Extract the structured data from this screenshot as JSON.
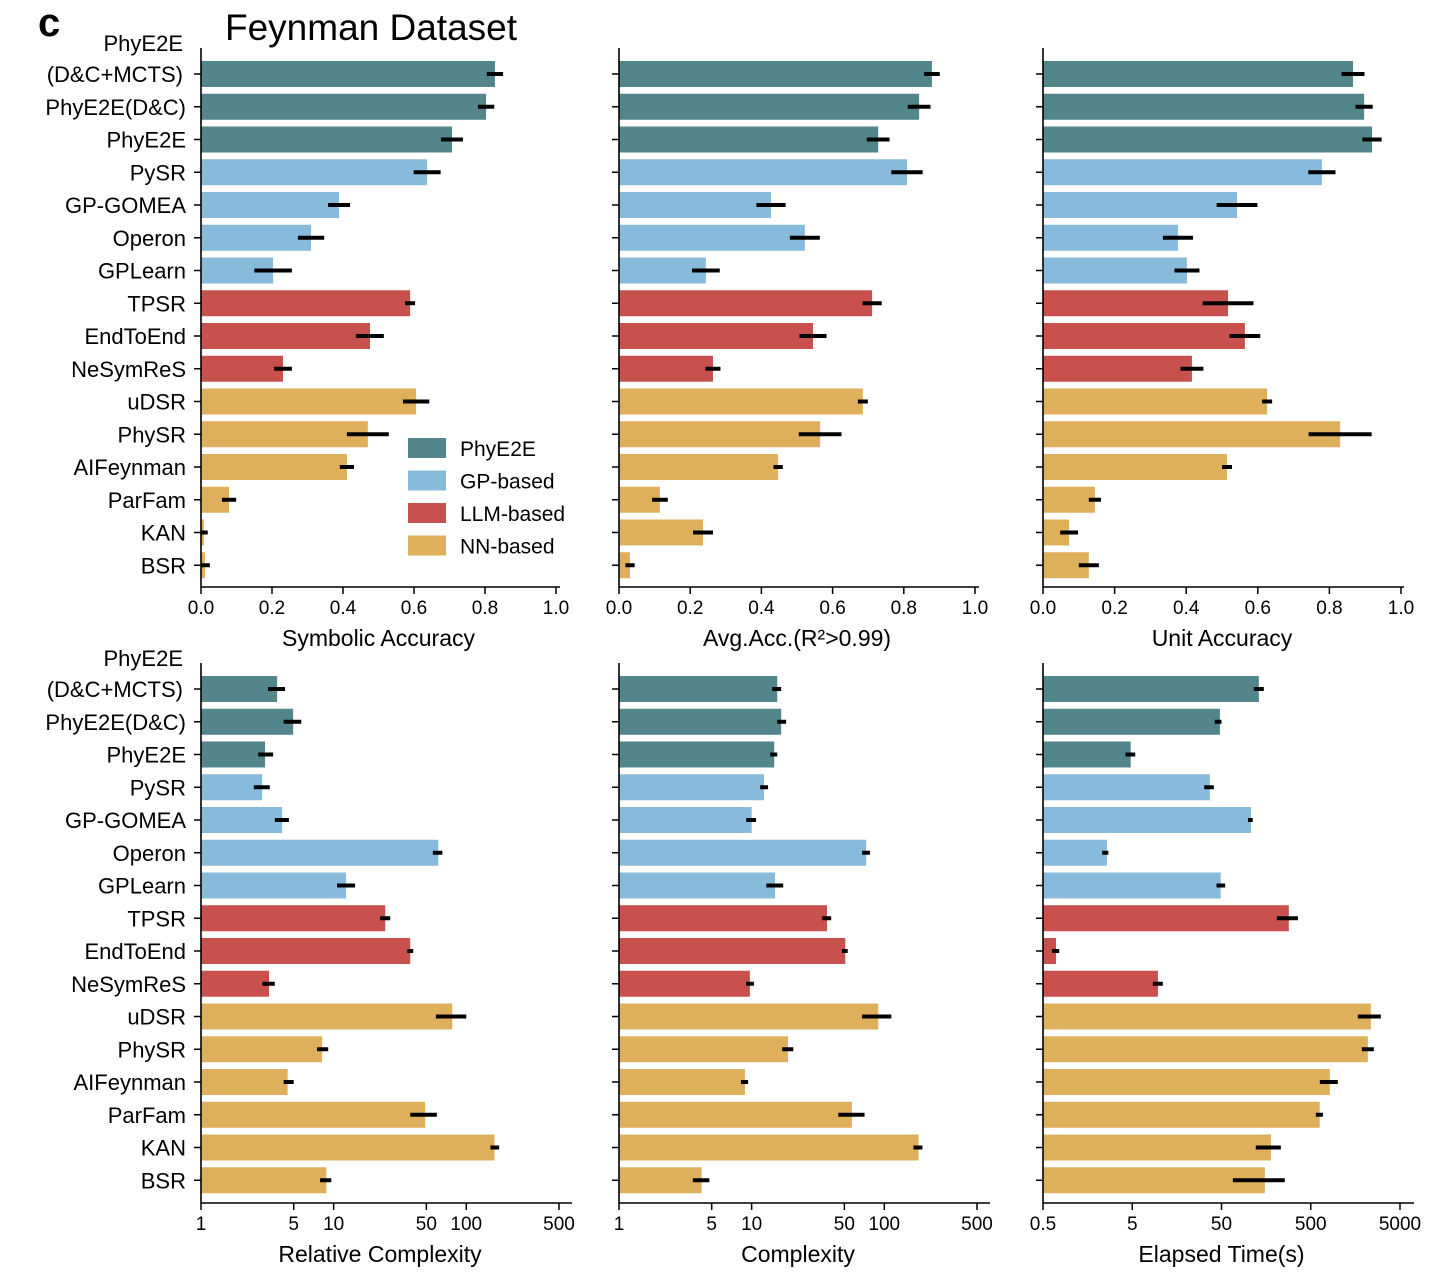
{
  "panel_letter": "c",
  "title": "Feynman Dataset",
  "colors": {
    "PhyE2E": "#52868a",
    "GP-based": "#88bbdb",
    "LLM-based": "#c8514d",
    "NN-based": "#deb05c"
  },
  "legend": [
    "PhyE2E",
    "GP-based",
    "LLM-based",
    "NN-based"
  ],
  "methods": [
    "PhyE2E (D&C+MCTS)",
    "PhyE2E(D&C)",
    "PhyE2E",
    "PySR",
    "GP-GOMEA",
    "Operon",
    "GPLearn",
    "TPSR",
    "EndToEnd",
    "NeSymReS",
    "uDSR",
    "PhySR",
    "AIFeynman",
    "ParFam",
    "KAN",
    "BSR"
  ],
  "method_groups": [
    "PhyE2E",
    "PhyE2E",
    "PhyE2E",
    "GP-based",
    "GP-based",
    "GP-based",
    "GP-based",
    "LLM-based",
    "LLM-based",
    "LLM-based",
    "NN-based",
    "NN-based",
    "NN-based",
    "NN-based",
    "NN-based",
    "NN-based"
  ],
  "chart_data": [
    {
      "type": "bar",
      "orientation": "horizontal",
      "xlabel": "Symbolic Accuracy",
      "scale": "linear",
      "xlim": [
        0,
        1.0
      ],
      "ticks": [
        "0.0",
        "0.2",
        "0.4",
        "0.6",
        "0.8",
        "1.0"
      ],
      "values": [
        0.828,
        0.803,
        0.707,
        0.637,
        0.389,
        0.31,
        0.203,
        0.589,
        0.476,
        0.231,
        0.606,
        0.47,
        0.411,
        0.079,
        0.008,
        0.011
      ],
      "err": [
        0.023,
        0.023,
        0.031,
        0.038,
        0.031,
        0.037,
        0.053,
        0.014,
        0.039,
        0.025,
        0.037,
        0.059,
        0.02,
        0.02,
        0.011,
        0.014
      ]
    },
    {
      "type": "bar",
      "orientation": "horizontal",
      "xlabel": "Avg.Acc.(R²>0.99)",
      "scale": "linear",
      "xlim": [
        0,
        1.0
      ],
      "ticks": [
        "0.0",
        "0.2",
        "0.4",
        "0.6",
        "0.8",
        "1.0"
      ],
      "values": [
        0.879,
        0.843,
        0.728,
        0.809,
        0.427,
        0.522,
        0.244,
        0.711,
        0.545,
        0.264,
        0.685,
        0.565,
        0.447,
        0.115,
        0.236,
        0.031
      ],
      "err": [
        0.022,
        0.032,
        0.032,
        0.044,
        0.041,
        0.042,
        0.039,
        0.027,
        0.038,
        0.021,
        0.014,
        0.06,
        0.013,
        0.022,
        0.028,
        0.013
      ]
    },
    {
      "type": "bar",
      "orientation": "horizontal",
      "xlabel": "Unit Accuracy",
      "scale": "linear",
      "xlim": [
        0,
        1.0
      ],
      "ticks": [
        "0.0",
        "0.2",
        "0.4",
        "0.6",
        "0.8",
        "1.0"
      ],
      "values": [
        0.866,
        0.897,
        0.919,
        0.779,
        0.542,
        0.377,
        0.402,
        0.517,
        0.564,
        0.416,
        0.626,
        0.83,
        0.514,
        0.145,
        0.073,
        0.128
      ],
      "err": [
        0.032,
        0.024,
        0.027,
        0.038,
        0.057,
        0.042,
        0.035,
        0.071,
        0.043,
        0.032,
        0.014,
        0.088,
        0.014,
        0.017,
        0.025,
        0.028
      ]
    },
    {
      "type": "bar",
      "orientation": "horizontal",
      "xlabel": "Relative Complexity",
      "scale": "log",
      "xlim": [
        1,
        600
      ],
      "ticks": [
        "1",
        "5",
        "10",
        "50",
        "100",
        "500"
      ],
      "values": [
        3.75,
        4.95,
        3.04,
        2.89,
        4.09,
        61.5,
        12.4,
        24.5,
        37.8,
        3.26,
        78.4,
        8.2,
        4.5,
        49,
        163,
        8.8
      ],
      "ci": [
        [
          3.2,
          4.3
        ],
        [
          4.2,
          5.7
        ],
        [
          2.7,
          3.5
        ],
        [
          2.5,
          3.3
        ],
        [
          3.6,
          4.6
        ],
        [
          56,
          66
        ],
        [
          10.6,
          14.5
        ],
        [
          22.4,
          26.7
        ],
        [
          35.9,
          39.8
        ],
        [
          2.9,
          3.6
        ],
        [
          59,
          100
        ],
        [
          7.5,
          9.1
        ],
        [
          4.2,
          5.0
        ],
        [
          37.8,
          60
        ],
        [
          152,
          177
        ],
        [
          7.9,
          9.6
        ]
      ]
    },
    {
      "type": "bar",
      "orientation": "horizontal",
      "xlabel": "Complexity",
      "scale": "log",
      "xlim": [
        1,
        600
      ],
      "ticks": [
        "1",
        "5",
        "10",
        "50",
        "100",
        "500"
      ],
      "values": [
        15.6,
        16.7,
        14.8,
        12.4,
        10,
        73,
        15,
        37,
        50.8,
        9.7,
        90,
        18.8,
        8.9,
        57,
        181,
        4.2
      ],
      "ci": [
        [
          14.3,
          16.7
        ],
        [
          15.6,
          18.2
        ],
        [
          13.8,
          15.6
        ],
        [
          11.6,
          13.3
        ],
        [
          9.1,
          10.8
        ],
        [
          68,
          78
        ],
        [
          12.9,
          17.3
        ],
        [
          34,
          39.8
        ],
        [
          48,
          53
        ],
        [
          9.1,
          10.4
        ],
        [
          68,
          113
        ],
        [
          17,
          20.6
        ],
        [
          8.3,
          9.4
        ],
        [
          45,
          71
        ],
        [
          166,
          194
        ],
        [
          3.6,
          4.8
        ]
      ]
    },
    {
      "type": "bar",
      "orientation": "horizontal",
      "xlabel": "Elapsed Time(s)",
      "scale": "log",
      "xlim": [
        0.5,
        6000
      ],
      "ticks": [
        "0.5",
        "5",
        "50",
        "500",
        "5000"
      ],
      "values": [
        131,
        48,
        4.8,
        37,
        107,
        2.6,
        49,
        284,
        0.7,
        9.7,
        2357,
        2180,
        818,
        630,
        179,
        153
      ],
      "ci": [
        [
          115,
          149
        ],
        [
          42,
          50
        ],
        [
          4.2,
          5.4
        ],
        [
          32,
          41
        ],
        [
          99,
          112
        ],
        [
          2.3,
          2.7
        ],
        [
          44,
          55
        ],
        [
          209,
          359
        ],
        [
          0.63,
          0.76
        ],
        [
          8.5,
          11
        ],
        [
          1683,
          3048
        ],
        [
          1867,
          2546
        ],
        [
          632,
          1005
        ],
        [
          570,
          684
        ],
        [
          121,
          231
        ],
        [
          67,
          256
        ]
      ]
    }
  ]
}
